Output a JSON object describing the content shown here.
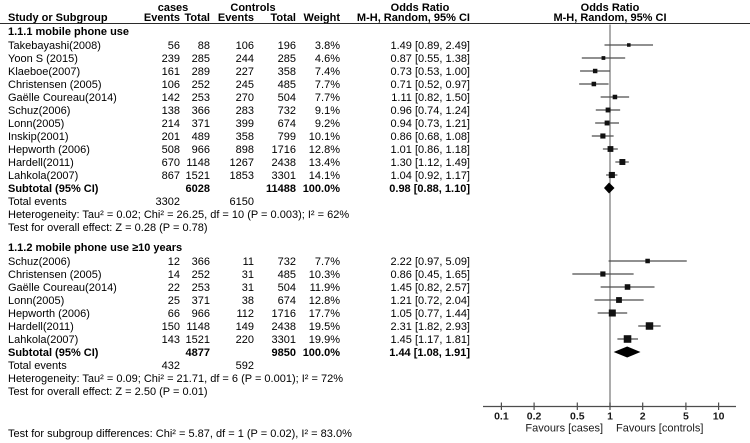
{
  "header": {
    "study_col_label": "Study or Subgroup",
    "cases_group_label": "cases",
    "controls_group_label": "Controls",
    "events_label": "Events",
    "total_label": "Total",
    "weight_label": "Weight",
    "or_title": "Odds Ratio",
    "or_method": "M-H, Random, 95% CI"
  },
  "footer": {
    "subgroup_diff": "Test for subgroup differences: Chi² = 5.87, df = 1 (P = 0.02), I² = 83.0%"
  },
  "colors": {
    "marker": "#111111",
    "ci_line": "#4d4d4d",
    "null_line": "#808080",
    "axis": "#4d4d4d",
    "diamond": "#000000"
  },
  "chart_data": {
    "type": "forest",
    "effect_measure": "Odds Ratio",
    "method": "M-H, Random, 95% CI",
    "x_scale": "log10",
    "x_ticks": [
      0.1,
      0.2,
      0.5,
      1,
      2,
      5,
      10
    ],
    "x_tick_labels": [
      "0.1",
      "0.2",
      "0.5",
      "1",
      "2",
      "5",
      "10"
    ],
    "null_value": 1,
    "favours_left": "Favours [cases]",
    "favours_right": "Favours [controls]",
    "subgroups": [
      {
        "label": "1.1.1 mobile phone use",
        "studies": [
          {
            "name": "Takebayashi(2008)",
            "cases_events": "56",
            "cases_total": "88",
            "controls_events": "106",
            "controls_total": "196",
            "weight": "3.8%",
            "or": 1.49,
            "ci_low": 0.89,
            "ci_high": 2.49,
            "or_text": "1.49 [0.89, 2.49]"
          },
          {
            "name": "Yoon S (2015)",
            "cases_events": "239",
            "cases_total": "285",
            "controls_events": "244",
            "controls_total": "285",
            "weight": "4.6%",
            "or": 0.87,
            "ci_low": 0.55,
            "ci_high": 1.38,
            "or_text": "0.87 [0.55, 1.38]"
          },
          {
            "name": "Klaeboe(2007)",
            "cases_events": "161",
            "cases_total": "289",
            "controls_events": "227",
            "controls_total": "358",
            "weight": "7.4%",
            "or": 0.73,
            "ci_low": 0.53,
            "ci_high": 1.0,
            "or_text": "0.73 [0.53, 1.00]"
          },
          {
            "name": "Christensen (2005)",
            "cases_events": "106",
            "cases_total": "252",
            "controls_events": "245",
            "controls_total": "485",
            "weight": "7.7%",
            "or": 0.71,
            "ci_low": 0.52,
            "ci_high": 0.97,
            "or_text": "0.71 [0.52, 0.97]"
          },
          {
            "name": "Gaëlle Coureau(2014)",
            "cases_events": "142",
            "cases_total": "253",
            "controls_events": "270",
            "controls_total": "504",
            "weight": "7.7%",
            "or": 1.11,
            "ci_low": 0.82,
            "ci_high": 1.5,
            "or_text": "1.11 [0.82, 1.50]"
          },
          {
            "name": "Schuz(2006)",
            "cases_events": "138",
            "cases_total": "366",
            "controls_events": "283",
            "controls_total": "732",
            "weight": "9.1%",
            "or": 0.96,
            "ci_low": 0.74,
            "ci_high": 1.24,
            "or_text": "0.96 [0.74, 1.24]"
          },
          {
            "name": "Lonn(2005)",
            "cases_events": "214",
            "cases_total": "371",
            "controls_events": "399",
            "controls_total": "674",
            "weight": "9.2%",
            "or": 0.94,
            "ci_low": 0.73,
            "ci_high": 1.21,
            "or_text": "0.94 [0.73, 1.21]"
          },
          {
            "name": "Inskip(2001)",
            "cases_events": "201",
            "cases_total": "489",
            "controls_events": "358",
            "controls_total": "799",
            "weight": "10.1%",
            "or": 0.86,
            "ci_low": 0.68,
            "ci_high": 1.08,
            "or_text": "0.86 [0.68, 1.08]"
          },
          {
            "name": "Hepworth (2006)",
            "cases_events": "508",
            "cases_total": "966",
            "controls_events": "898",
            "controls_total": "1716",
            "weight": "12.8%",
            "or": 1.01,
            "ci_low": 0.86,
            "ci_high": 1.18,
            "or_text": "1.01 [0.86, 1.18]"
          },
          {
            "name": "Hardell(2011)",
            "cases_events": "670",
            "cases_total": "1148",
            "controls_events": "1267",
            "controls_total": "2438",
            "weight": "13.4%",
            "or": 1.3,
            "ci_low": 1.12,
            "ci_high": 1.49,
            "or_text": "1.30 [1.12, 1.49]"
          },
          {
            "name": "Lahkola(2007)",
            "cases_events": "867",
            "cases_total": "1521",
            "controls_events": "1853",
            "controls_total": "3301",
            "weight": "14.1%",
            "or": 1.04,
            "ci_low": 0.92,
            "ci_high": 1.17,
            "or_text": "1.04 [0.92, 1.17]"
          }
        ],
        "subtotal": {
          "label": "Subtotal (95% CI)",
          "cases_total": "6028",
          "controls_total": "11488",
          "weight": "100.0%",
          "or": 0.98,
          "ci_low": 0.88,
          "ci_high": 1.1,
          "or_text": "0.98 [0.88, 1.10]"
        },
        "total_events": {
          "label": "Total events",
          "cases": "3302",
          "controls": "6150"
        },
        "heterogeneity": "Heterogeneity: Tau² = 0.02; Chi² = 26.25, df = 10 (P = 0.003); I² = 62%",
        "overall_test": "Test for overall effect: Z = 0.28 (P = 0.78)"
      },
      {
        "label": "1.1.2 mobile phone use ≥10 years",
        "studies": [
          {
            "name": "Schuz(2006)",
            "cases_events": "12",
            "cases_total": "366",
            "controls_events": "11",
            "controls_total": "732",
            "weight": "7.7%",
            "or": 2.22,
            "ci_low": 0.97,
            "ci_high": 5.09,
            "or_text": "2.22 [0.97, 5.09]"
          },
          {
            "name": "Christensen (2005)",
            "cases_events": "14",
            "cases_total": "252",
            "controls_events": "31",
            "controls_total": "485",
            "weight": "10.3%",
            "or": 0.86,
            "ci_low": 0.45,
            "ci_high": 1.65,
            "or_text": "0.86 [0.45, 1.65]"
          },
          {
            "name": "Gaëlle Coureau(2014)",
            "cases_events": "22",
            "cases_total": "253",
            "controls_events": "31",
            "controls_total": "504",
            "weight": "11.9%",
            "or": 1.45,
            "ci_low": 0.82,
            "ci_high": 2.57,
            "or_text": "1.45 [0.82, 2.57]"
          },
          {
            "name": "Lonn(2005)",
            "cases_events": "25",
            "cases_total": "371",
            "controls_events": "38",
            "controls_total": "674",
            "weight": "12.8%",
            "or": 1.21,
            "ci_low": 0.72,
            "ci_high": 2.04,
            "or_text": "1.21 [0.72, 2.04]"
          },
          {
            "name": "Hepworth (2006)",
            "cases_events": "66",
            "cases_total": "966",
            "controls_events": "112",
            "controls_total": "1716",
            "weight": "17.7%",
            "or": 1.05,
            "ci_low": 0.77,
            "ci_high": 1.44,
            "or_text": "1.05 [0.77, 1.44]"
          },
          {
            "name": "Hardell(2011)",
            "cases_events": "150",
            "cases_total": "1148",
            "controls_events": "149",
            "controls_total": "2438",
            "weight": "19.5%",
            "or": 2.31,
            "ci_low": 1.82,
            "ci_high": 2.93,
            "or_text": "2.31 [1.82, 2.93]"
          },
          {
            "name": "Lahkola(2007)",
            "cases_events": "143",
            "cases_total": "1521",
            "controls_events": "220",
            "controls_total": "3301",
            "weight": "19.9%",
            "or": 1.45,
            "ci_low": 1.17,
            "ci_high": 1.81,
            "or_text": "1.45 [1.17, 1.81]"
          }
        ],
        "subtotal": {
          "label": "Subtotal (95% CI)",
          "cases_total": "4877",
          "controls_total": "9850",
          "weight": "100.0%",
          "or": 1.44,
          "ci_low": 1.08,
          "ci_high": 1.91,
          "or_text": "1.44 [1.08, 1.91]"
        },
        "total_events": {
          "label": "Total events",
          "cases": "432",
          "controls": "592"
        },
        "heterogeneity": "Heterogeneity: Tau² = 0.09; Chi² = 21.71, df = 6 (P = 0.001); I² = 72%",
        "overall_test": "Test for overall effect: Z = 2.50 (P = 0.01)"
      }
    ]
  }
}
